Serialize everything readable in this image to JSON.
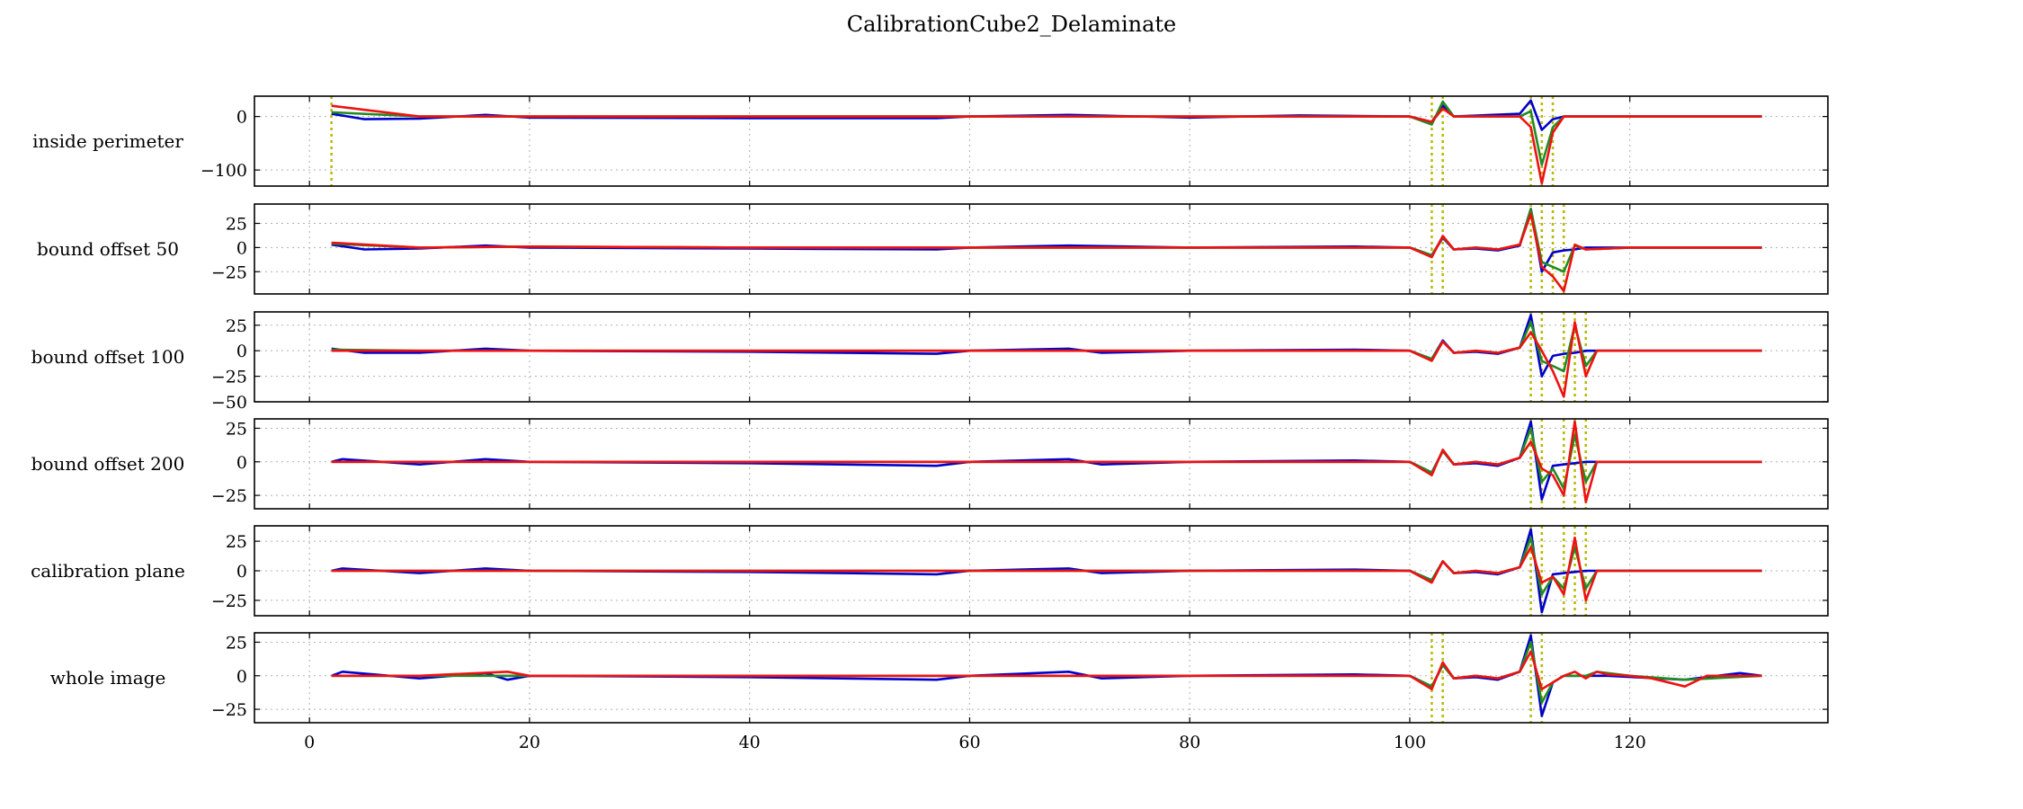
{
  "figure": {
    "title": "CalibrationCube2_Delaminate"
  },
  "colors": {
    "series_blue": "#0000cc",
    "series_green": "#228b22",
    "series_red": "#ee1111",
    "event_marker": "#b8b800",
    "grid": "#b0b0b0"
  },
  "chart_data": [
    {
      "type": "line",
      "ylabel": "inside perimeter",
      "xlim": [
        -5,
        138
      ],
      "ylim": [
        -130,
        38
      ],
      "xticks": [
        0,
        20,
        40,
        60,
        80,
        100,
        120
      ],
      "yticks": [
        -100,
        0
      ],
      "ytick_labels": [
        "−100",
        "0"
      ],
      "grid": true,
      "event_lines": [
        2,
        102,
        103,
        111,
        112,
        113
      ],
      "series": [
        {
          "color": "blue",
          "x": [
            2,
            5,
            10,
            16,
            20,
            40,
            57,
            60,
            69,
            80,
            90,
            100,
            102,
            103,
            104,
            110,
            111,
            112,
            113,
            114,
            120,
            132
          ],
          "y": [
            5,
            -5,
            -4,
            3,
            -2,
            -3,
            -3,
            0,
            3,
            -2,
            2,
            0,
            -10,
            20,
            0,
            5,
            30,
            -25,
            -5,
            0,
            0,
            0
          ]
        },
        {
          "color": "green",
          "x": [
            2,
            10,
            20,
            40,
            60,
            80,
            100,
            102,
            103,
            104,
            110,
            111,
            112,
            113,
            114,
            120,
            132
          ],
          "y": [
            8,
            0,
            0,
            0,
            0,
            0,
            0,
            -15,
            28,
            0,
            0,
            10,
            -90,
            -20,
            0,
            0,
            0
          ]
        },
        {
          "color": "red",
          "x": [
            2,
            10,
            20,
            40,
            60,
            80,
            100,
            102,
            103,
            104,
            110,
            111,
            112,
            113,
            114,
            120,
            132
          ],
          "y": [
            20,
            0,
            0,
            0,
            0,
            0,
            0,
            -10,
            15,
            0,
            0,
            -20,
            -125,
            -30,
            0,
            0,
            0
          ]
        }
      ]
    },
    {
      "type": "line",
      "ylabel": "bound offset 50",
      "xlim": [
        -5,
        138
      ],
      "ylim": [
        -48,
        45
      ],
      "xticks": [
        0,
        20,
        40,
        60,
        80,
        100,
        120
      ],
      "yticks": [
        -25,
        0,
        25
      ],
      "ytick_labels": [
        "−25",
        "0",
        "25"
      ],
      "grid": true,
      "event_lines": [
        102,
        103,
        111,
        112,
        113,
        114
      ],
      "series": [
        {
          "color": "blue",
          "x": [
            2,
            5,
            10,
            16,
            20,
            40,
            57,
            60,
            69,
            80,
            95,
            100,
            102,
            103,
            104,
            106,
            108,
            110,
            111,
            112,
            113,
            114,
            115,
            116,
            120,
            132
          ],
          "y": [
            3,
            -2,
            -1,
            2,
            0,
            -1,
            -2,
            0,
            2,
            0,
            1,
            0,
            -8,
            10,
            -2,
            -1,
            -3,
            2,
            40,
            -25,
            -5,
            -3,
            -2,
            0,
            0,
            0
          ]
        },
        {
          "color": "green",
          "x": [
            2,
            10,
            20,
            40,
            60,
            80,
            100,
            102,
            103,
            104,
            106,
            108,
            110,
            111,
            112,
            113,
            114,
            115,
            116,
            120,
            132
          ],
          "y": [
            4,
            0,
            1,
            0,
            0,
            0,
            0,
            -8,
            11,
            -2,
            0,
            -2,
            3,
            40,
            -15,
            -20,
            -25,
            2,
            -2,
            0,
            0
          ]
        },
        {
          "color": "red",
          "x": [
            2,
            10,
            20,
            40,
            60,
            80,
            100,
            102,
            103,
            104,
            106,
            108,
            110,
            111,
            112,
            113,
            114,
            115,
            116,
            120,
            132
          ],
          "y": [
            5,
            0,
            1,
            0,
            0,
            0,
            0,
            -10,
            12,
            -2,
            0,
            -2,
            3,
            35,
            -20,
            -30,
            -45,
            3,
            -2,
            0,
            0
          ]
        }
      ]
    },
    {
      "type": "line",
      "ylabel": "bound offset 100",
      "xlim": [
        -5,
        138
      ],
      "ylim": [
        -50,
        38
      ],
      "xticks": [
        0,
        20,
        40,
        60,
        80,
        100,
        120
      ],
      "yticks": [
        -50,
        -25,
        0,
        25
      ],
      "ytick_labels": [
        "−50",
        "−25",
        "0",
        "25"
      ],
      "grid": true,
      "event_lines": [
        111,
        112,
        114,
        115,
        116
      ],
      "series": [
        {
          "color": "blue",
          "x": [
            2,
            5,
            10,
            16,
            20,
            40,
            57,
            60,
            69,
            72,
            80,
            95,
            100,
            102,
            103,
            104,
            106,
            108,
            110,
            111,
            112,
            113,
            114,
            115,
            116,
            117,
            120,
            132
          ],
          "y": [
            2,
            -2,
            -2,
            2,
            0,
            -1,
            -3,
            0,
            2,
            -2,
            0,
            1,
            0,
            -8,
            10,
            -2,
            -1,
            -3,
            3,
            35,
            -25,
            -5,
            -3,
            -2,
            0,
            0,
            0,
            0
          ]
        },
        {
          "color": "green",
          "x": [
            2,
            10,
            20,
            40,
            60,
            80,
            100,
            102,
            103,
            104,
            106,
            108,
            110,
            111,
            112,
            113,
            114,
            115,
            116,
            117,
            120,
            132
          ],
          "y": [
            1,
            0,
            0,
            0,
            0,
            0,
            0,
            -8,
            9,
            -2,
            0,
            -2,
            3,
            28,
            -10,
            -15,
            -20,
            25,
            -15,
            0,
            0,
            0
          ]
        },
        {
          "color": "red",
          "x": [
            2,
            10,
            20,
            40,
            60,
            80,
            100,
            102,
            103,
            104,
            106,
            108,
            110,
            111,
            112,
            113,
            114,
            115,
            116,
            117,
            120,
            132
          ],
          "y": [
            0,
            0,
            0,
            0,
            0,
            0,
            0,
            -10,
            9,
            -2,
            0,
            -2,
            3,
            18,
            0,
            -20,
            -45,
            28,
            -25,
            0,
            0,
            0
          ]
        }
      ]
    },
    {
      "type": "line",
      "ylabel": "bound offset 200",
      "xlim": [
        -5,
        138
      ],
      "ylim": [
        -35,
        32
      ],
      "xticks": [
        0,
        20,
        40,
        60,
        80,
        100,
        120
      ],
      "yticks": [
        -25,
        0,
        25
      ],
      "ytick_labels": [
        "−25",
        "0",
        "25"
      ],
      "grid": true,
      "event_lines": [
        111,
        112,
        114,
        115,
        116
      ],
      "series": [
        {
          "color": "blue",
          "x": [
            2,
            3,
            10,
            16,
            20,
            40,
            57,
            60,
            69,
            72,
            80,
            95,
            100,
            102,
            103,
            104,
            106,
            108,
            110,
            111,
            112,
            113,
            114,
            115,
            116,
            117,
            120,
            132
          ],
          "y": [
            0,
            2,
            -2,
            2,
            0,
            -1,
            -3,
            0,
            2,
            -2,
            0,
            1,
            0,
            -8,
            8,
            -2,
            -1,
            -3,
            3,
            30,
            -28,
            -3,
            -2,
            -1,
            0,
            0,
            0,
            0
          ]
        },
        {
          "color": "green",
          "x": [
            2,
            10,
            20,
            40,
            60,
            80,
            100,
            102,
            103,
            104,
            106,
            108,
            110,
            111,
            112,
            113,
            114,
            115,
            116,
            117,
            120,
            132
          ],
          "y": [
            0,
            0,
            0,
            0,
            0,
            0,
            0,
            -8,
            8,
            -2,
            0,
            -2,
            3,
            25,
            -15,
            -5,
            -20,
            20,
            -15,
            0,
            0,
            0
          ]
        },
        {
          "color": "red",
          "x": [
            2,
            10,
            20,
            40,
            60,
            80,
            100,
            102,
            103,
            104,
            106,
            108,
            110,
            111,
            112,
            113,
            114,
            115,
            116,
            117,
            120,
            132
          ],
          "y": [
            0,
            0,
            0,
            0,
            0,
            0,
            0,
            -10,
            9,
            -2,
            0,
            -2,
            3,
            15,
            -5,
            -10,
            -25,
            30,
            -30,
            0,
            0,
            0
          ]
        }
      ]
    },
    {
      "type": "line",
      "ylabel": "calibration plane",
      "xlim": [
        -5,
        138
      ],
      "ylim": [
        -38,
        38
      ],
      "xticks": [
        0,
        20,
        40,
        60,
        80,
        100,
        120
      ],
      "yticks": [
        -25,
        0,
        25
      ],
      "ytick_labels": [
        "−25",
        "0",
        "25"
      ],
      "grid": true,
      "event_lines": [
        111,
        112,
        114,
        115,
        116
      ],
      "series": [
        {
          "color": "blue",
          "x": [
            2,
            3,
            10,
            16,
            20,
            40,
            57,
            60,
            69,
            72,
            80,
            95,
            100,
            102,
            103,
            104,
            106,
            108,
            110,
            111,
            112,
            113,
            114,
            115,
            116,
            117,
            120,
            132
          ],
          "y": [
            0,
            2,
            -2,
            2,
            0,
            -1,
            -3,
            0,
            2,
            -2,
            0,
            1,
            0,
            -8,
            8,
            -2,
            -1,
            -3,
            3,
            35,
            -35,
            -3,
            -2,
            -1,
            0,
            0,
            0,
            0
          ]
        },
        {
          "color": "green",
          "x": [
            2,
            10,
            20,
            40,
            60,
            80,
            100,
            102,
            103,
            104,
            106,
            108,
            110,
            111,
            112,
            113,
            114,
            115,
            116,
            117,
            120,
            132
          ],
          "y": [
            0,
            0,
            0,
            0,
            0,
            0,
            0,
            -8,
            8,
            -2,
            0,
            -2,
            3,
            28,
            -20,
            -5,
            -15,
            20,
            -15,
            0,
            0,
            0
          ]
        },
        {
          "color": "red",
          "x": [
            2,
            10,
            20,
            40,
            60,
            80,
            100,
            102,
            103,
            104,
            106,
            108,
            110,
            111,
            112,
            113,
            114,
            115,
            116,
            117,
            120,
            132
          ],
          "y": [
            0,
            0,
            0,
            0,
            0,
            0,
            0,
            -10,
            8,
            -2,
            0,
            -2,
            3,
            20,
            -10,
            -5,
            -20,
            28,
            -25,
            0,
            0,
            0
          ]
        }
      ]
    },
    {
      "type": "line",
      "ylabel": "whole image",
      "xlim": [
        -5,
        138
      ],
      "ylim": [
        -35,
        32
      ],
      "xticks": [
        0,
        20,
        40,
        60,
        80,
        100,
        120
      ],
      "xtick_labels": [
        "0",
        "20",
        "40",
        "60",
        "80",
        "100",
        "120"
      ],
      "yticks": [
        -25,
        0,
        25
      ],
      "ytick_labels": [
        "−25",
        "0",
        "25"
      ],
      "grid": true,
      "event_lines": [
        102,
        103,
        111,
        112
      ],
      "series": [
        {
          "color": "blue",
          "x": [
            2,
            3,
            10,
            16,
            18,
            20,
            40,
            57,
            60,
            69,
            72,
            80,
            95,
            100,
            102,
            103,
            104,
            106,
            108,
            110,
            111,
            112,
            113,
            114,
            115,
            116,
            118,
            125,
            130,
            132
          ],
          "y": [
            0,
            3,
            -2,
            2,
            -3,
            0,
            -1,
            -3,
            0,
            3,
            -2,
            0,
            1,
            0,
            -8,
            8,
            -2,
            -1,
            -3,
            3,
            30,
            -30,
            -5,
            0,
            0,
            0,
            0,
            -3,
            2,
            0
          ]
        },
        {
          "color": "green",
          "x": [
            2,
            10,
            20,
            40,
            60,
            80,
            100,
            102,
            103,
            104,
            106,
            108,
            110,
            111,
            112,
            113,
            114,
            115,
            116,
            117,
            120,
            125,
            132
          ],
          "y": [
            0,
            0,
            0,
            0,
            0,
            0,
            0,
            -8,
            8,
            -2,
            0,
            -2,
            3,
            25,
            -20,
            -5,
            0,
            0,
            0,
            3,
            0,
            -3,
            0
          ]
        },
        {
          "color": "red",
          "x": [
            2,
            10,
            18,
            20,
            40,
            60,
            80,
            100,
            102,
            103,
            104,
            106,
            108,
            110,
            111,
            112,
            113,
            114,
            115,
            116,
            117,
            118,
            120,
            122,
            125,
            127,
            132
          ],
          "y": [
            0,
            0,
            3,
            0,
            0,
            0,
            0,
            0,
            -10,
            10,
            -2,
            0,
            -2,
            3,
            18,
            -10,
            -5,
            0,
            3,
            -2,
            3,
            1,
            0,
            -2,
            -8,
            0,
            0
          ]
        }
      ]
    }
  ]
}
